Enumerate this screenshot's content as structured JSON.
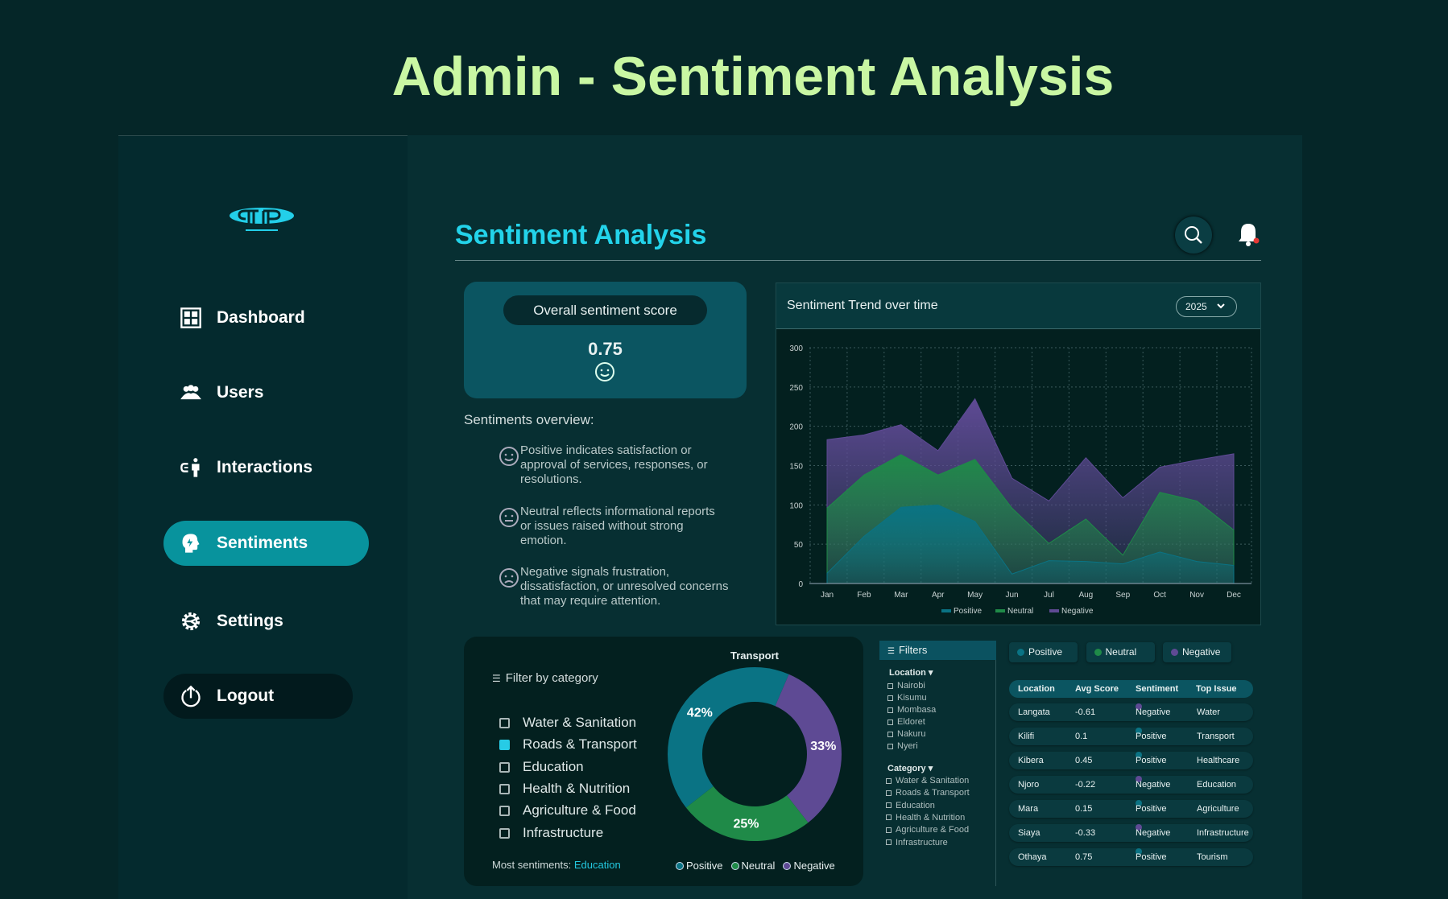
{
  "page_title": "Admin - Sentiment Analysis",
  "sidebar": {
    "logo_icon": "pp-logo",
    "items": [
      {
        "label": "Dashboard",
        "icon": "dashboard-grid-icon"
      },
      {
        "label": "Users",
        "icon": "users-icon"
      },
      {
        "label": "Interactions",
        "icon": "interactions-icon"
      },
      {
        "label": "Sentiments",
        "icon": "head-bulb-icon",
        "active": true
      },
      {
        "label": "Settings",
        "icon": "gear-icon"
      }
    ],
    "logout": "Logout"
  },
  "header": {
    "title": "Sentiment Analysis",
    "search_icon": "search-icon",
    "bell_icon": "bell-icon",
    "notification": true
  },
  "score_card": {
    "label": "Overall sentiment score",
    "value": "0.75",
    "icon": "smiley-icon"
  },
  "overview": {
    "title": "Sentiments overview:",
    "items": [
      {
        "icon": "smile-icon",
        "text": "Positive indicates satisfaction or approval of services, responses, or resolutions."
      },
      {
        "icon": "neutral-face-icon",
        "text": "Neutral reflects informational reports or issues raised without strong emotion."
      },
      {
        "icon": "frown-icon",
        "text": "Negative signals frustration, dissatisfaction, or unresolved concerns that may require attention."
      }
    ]
  },
  "colors": {
    "positive": "#0a7384",
    "neutral": "#1f8a48",
    "negative": "#5e4a94",
    "accent": "#23d3ea"
  },
  "chart_data": [
    {
      "type": "area",
      "stacked": true,
      "title": "Sentiment Trend over time",
      "year_select": "2025",
      "categories": [
        "Jan",
        "Feb",
        "Mar",
        "Apr",
        "May",
        "Jun",
        "Jul",
        "Aug",
        "Sep",
        "Oct",
        "Nov",
        "Dec"
      ],
      "ylim": [
        0,
        300
      ],
      "yticks": [
        0,
        50,
        100,
        150,
        200,
        250,
        300
      ],
      "grid": true,
      "legend": "bottom",
      "series": [
        {
          "name": "Positive",
          "values": [
            13,
            60,
            97,
            100,
            79,
            12,
            29,
            28,
            25,
            40,
            28,
            23
          ]
        },
        {
          "name": "Neutral",
          "values": [
            83,
            78,
            67,
            38,
            79,
            84,
            22,
            54,
            11,
            76,
            77,
            45
          ]
        },
        {
          "name": "Negative",
          "values": [
            87,
            51,
            38,
            31,
            77,
            38,
            54,
            78,
            73,
            32,
            52,
            97
          ]
        }
      ]
    },
    {
      "type": "pie",
      "donut": true,
      "title": "Transport",
      "legend": "bottom",
      "slices": [
        {
          "name": "Positive",
          "value": 42,
          "label": "42%"
        },
        {
          "name": "Negative",
          "value": 33,
          "label": "33%"
        },
        {
          "name": "Neutral",
          "value": 25,
          "label": "25%"
        }
      ]
    }
  ],
  "category_filter": {
    "title": "Filter by category",
    "options": [
      {
        "label": "Water & Sanitation",
        "checked": false
      },
      {
        "label": "Roads & Transport",
        "checked": true
      },
      {
        "label": "Education",
        "checked": false
      },
      {
        "label": "Health & Nutrition",
        "checked": false
      },
      {
        "label": "Agriculture & Food",
        "checked": false
      },
      {
        "label": "Infrastructure",
        "checked": false
      }
    ],
    "most_label": "Most sentiments:",
    "most_value": "Education"
  },
  "filters": {
    "title": "Filters",
    "location_label": "Location",
    "locations": [
      "Nairobi",
      "Kisumu",
      "Mombasa",
      "Eldoret",
      "Nakuru",
      "Nyeri"
    ],
    "category_label": "Category",
    "categories": [
      "Water & Sanitation",
      "Roads & Transport",
      "Education",
      "Health & Nutrition",
      "Agriculture & Food",
      "Infrastructure"
    ]
  },
  "legend_chips": [
    "Positive",
    "Neutral",
    "Negative"
  ],
  "table": {
    "headers": [
      "Location",
      "Avg Score",
      "Sentiment",
      "Top Issue"
    ],
    "rows": [
      [
        "Langata",
        "-0.61",
        "Negative",
        "Water"
      ],
      [
        "Kilifi",
        "0.1",
        "Positive",
        "Transport"
      ],
      [
        "Kibera",
        "0.45",
        "Positive",
        "Healthcare"
      ],
      [
        "Njoro",
        "-0.22",
        "Negative",
        "Education"
      ],
      [
        "Mara",
        "0.15",
        "Positive",
        "Agriculture"
      ],
      [
        "Siaya",
        "-0.33",
        "Negative",
        "Infrastructure"
      ],
      [
        "Othaya",
        "0.75",
        "Positive",
        "Tourism"
      ]
    ]
  }
}
